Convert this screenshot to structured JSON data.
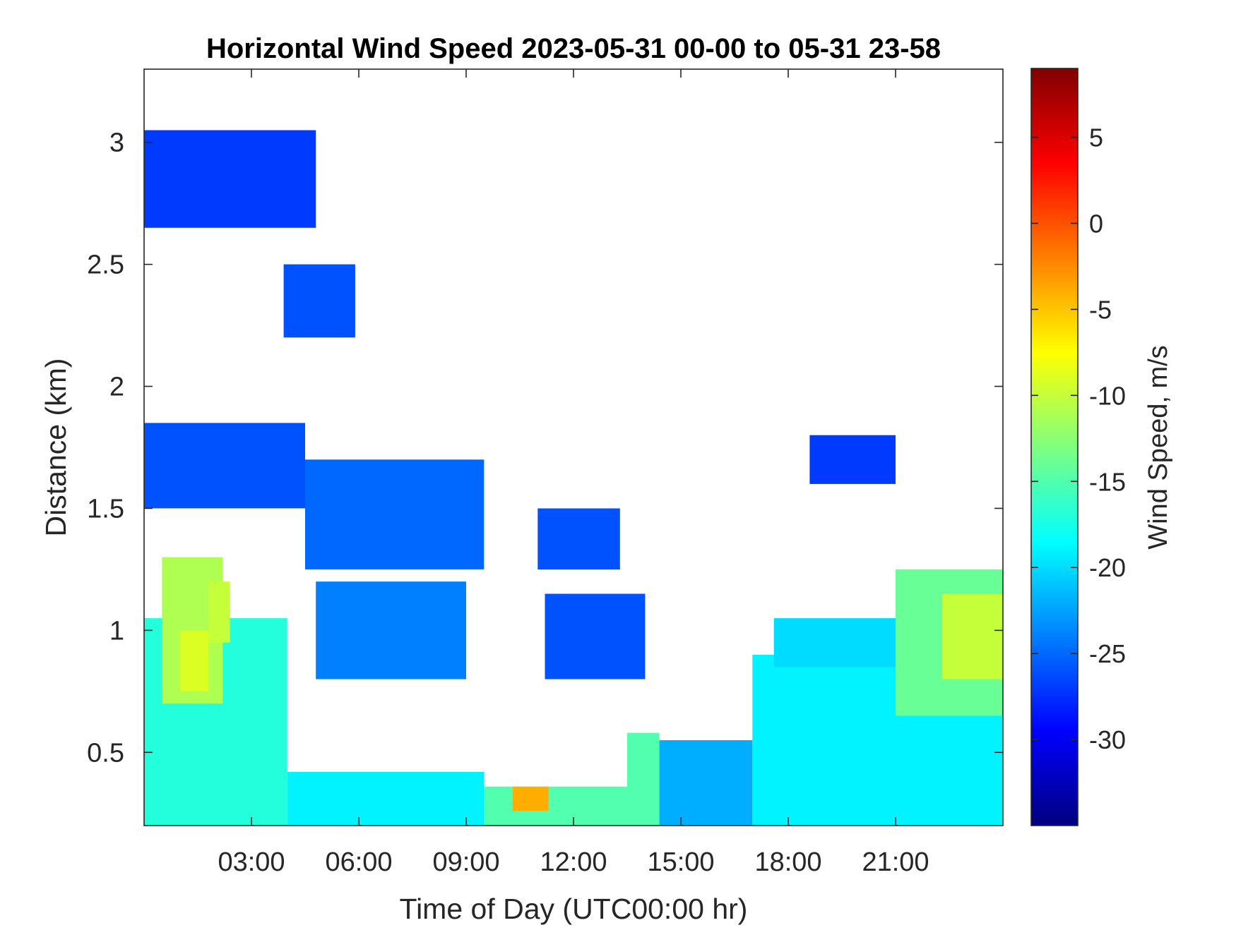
{
  "chart_data": {
    "type": "heatmap",
    "title": "Horizontal Wind Speed 2023-05-31 00-00 to 05-31 23-58",
    "xlabel": "Time of Day (UTC00:00 hr)",
    "ylabel": "Distance (km)",
    "colorbar_label": "Wind Speed, m/s",
    "x_units": "hours",
    "xlim": [
      0,
      24
    ],
    "ylim": [
      0.2,
      3.3
    ],
    "x_ticks": [
      3,
      6,
      9,
      12,
      15,
      18,
      21
    ],
    "x_tick_labels": [
      "03:00",
      "06:00",
      "09:00",
      "12:00",
      "15:00",
      "18:00",
      "21:00"
    ],
    "y_ticks": [
      0.5,
      1,
      1.5,
      2,
      2.5,
      3
    ],
    "y_tick_labels": [
      "0.5",
      "1",
      "1.5",
      "2",
      "2.5",
      "3"
    ],
    "colorbar_range": [
      -35,
      9
    ],
    "colorbar_ticks": [
      -30,
      -25,
      -20,
      -15,
      -10,
      -5,
      0,
      5
    ],
    "colorbar_tick_labels": [
      "-30",
      "-25",
      "-20",
      "-15",
      "-10",
      "-5",
      "0",
      "5"
    ],
    "colormap": "jet",
    "colormap_stops": [
      "#00007f",
      "#0000ff",
      "#007fff",
      "#00ffff",
      "#7fff7f",
      "#ffff00",
      "#ff7f00",
      "#ff0000",
      "#7f0000"
    ],
    "missing_color": "#ffffff",
    "grid": false,
    "regions": [
      {
        "t0": 0.0,
        "t1": 4.0,
        "h0": 0.2,
        "h1": 1.05,
        "value": -17
      },
      {
        "t0": 0.5,
        "t1": 2.2,
        "h0": 0.7,
        "h1": 1.3,
        "value": -11
      },
      {
        "t0": 1.0,
        "t1": 1.8,
        "h0": 0.75,
        "h1": 1.0,
        "value": -9
      },
      {
        "t0": 1.8,
        "t1": 2.4,
        "h0": 0.95,
        "h1": 1.2,
        "value": -10
      },
      {
        "t0": 4.0,
        "t1": 9.5,
        "h0": 0.2,
        "h1": 0.42,
        "value": -19
      },
      {
        "t0": 9.5,
        "t1": 13.5,
        "h0": 0.2,
        "h1": 0.36,
        "value": -15
      },
      {
        "t0": 10.3,
        "t1": 11.3,
        "h0": 0.26,
        "h1": 0.36,
        "value": -4
      },
      {
        "t0": 13.5,
        "t1": 14.4,
        "h0": 0.2,
        "h1": 0.58,
        "value": -15
      },
      {
        "t0": 14.4,
        "t1": 17.0,
        "h0": 0.2,
        "h1": 0.55,
        "value": -22
      },
      {
        "t0": 17.0,
        "t1": 24.0,
        "h0": 0.2,
        "h1": 0.9,
        "value": -19
      },
      {
        "t0": 17.6,
        "t1": 21.0,
        "h0": 0.85,
        "h1": 1.05,
        "value": -20
      },
      {
        "t0": 21.0,
        "t1": 24.0,
        "h0": 0.65,
        "h1": 1.25,
        "value": -14
      },
      {
        "t0": 22.3,
        "t1": 24.0,
        "h0": 0.8,
        "h1": 1.15,
        "value": -10
      },
      {
        "t0": 0.0,
        "t1": 4.5,
        "h0": 1.5,
        "h1": 1.85,
        "value": -26
      },
      {
        "t0": 4.5,
        "t1": 9.5,
        "h0": 1.25,
        "h1": 1.7,
        "value": -25
      },
      {
        "t0": 4.8,
        "t1": 9.0,
        "h0": 0.8,
        "h1": 1.2,
        "value": -24
      },
      {
        "t0": 11.2,
        "t1": 14.0,
        "h0": 0.8,
        "h1": 1.15,
        "value": -26
      },
      {
        "t0": 11.0,
        "t1": 13.3,
        "h0": 1.25,
        "h1": 1.5,
        "value": -26
      },
      {
        "t0": 3.9,
        "t1": 5.9,
        "h0": 2.2,
        "h1": 2.5,
        "value": -26
      },
      {
        "t0": 0.0,
        "t1": 4.8,
        "h0": 2.65,
        "h1": 3.05,
        "value": -27
      },
      {
        "t0": 18.6,
        "t1": 21.0,
        "h0": 1.6,
        "h1": 1.8,
        "value": -27
      }
    ]
  }
}
